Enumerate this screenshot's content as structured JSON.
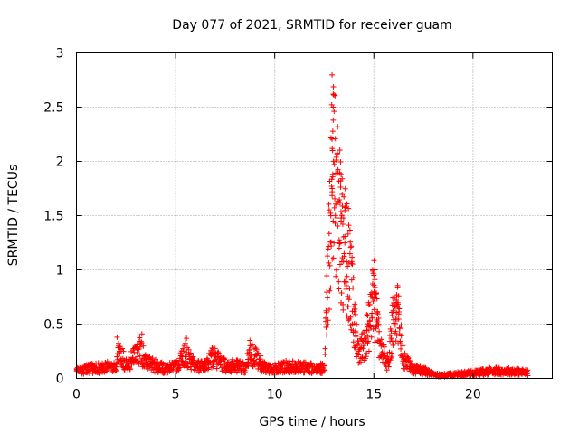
{
  "chart_data": {
    "type": "scatter",
    "title": "Day 077 of 2021, SRMTID for receiver guam",
    "xlabel": "GPS time / hours",
    "ylabel": "SRMTID / TECUs",
    "xlim": [
      0,
      24
    ],
    "ylim": [
      0,
      3
    ],
    "xticks": [
      0,
      5,
      10,
      15,
      20
    ],
    "xtick_labels": [
      "0",
      "5",
      "10",
      "15",
      "20"
    ],
    "yticks": [
      0,
      0.5,
      1,
      1.5,
      2,
      2.5,
      3
    ],
    "ytick_labels": [
      "0",
      "0.5",
      "1",
      "1.5",
      "2",
      "2.5",
      "3"
    ],
    "grid": true,
    "marker": "plus",
    "color": "#ff0000",
    "series": [
      {
        "name": "SRMTID",
        "envelope": {
          "x": [
            0,
            0.5,
            1.0,
            1.5,
            2.0,
            2.1,
            2.5,
            3.0,
            3.2,
            3.5,
            4.0,
            4.5,
            5.0,
            5.5,
            6.0,
            6.5,
            6.9,
            7.5,
            8.0,
            8.5,
            8.8,
            9.5,
            10.0,
            10.5,
            11.0,
            11.5,
            12.0,
            12.5,
            12.9,
            13.4,
            13.8,
            14.2,
            14.6,
            15.0,
            15.3,
            15.7,
            16.0,
            16.2,
            16.5,
            17.0,
            17.5,
            18.0,
            18.5,
            19.0,
            19.5,
            20.0,
            20.5,
            21.0,
            21.5,
            22.0,
            22.5,
            22.8
          ],
          "y": [
            0.09,
            0.12,
            0.13,
            0.14,
            0.15,
            0.36,
            0.18,
            0.3,
            0.38,
            0.2,
            0.16,
            0.12,
            0.15,
            0.3,
            0.16,
            0.15,
            0.28,
            0.16,
            0.16,
            0.14,
            0.32,
            0.14,
            0.12,
            0.15,
            0.15,
            0.14,
            0.13,
            0.13,
            2.6,
            1.85,
            1.3,
            0.3,
            0.5,
            1.0,
            0.4,
            0.2,
            0.75,
            0.78,
            0.25,
            0.12,
            0.1,
            0.05,
            0.04,
            0.05,
            0.06,
            0.07,
            0.08,
            0.1,
            0.09,
            0.09,
            0.08,
            0.07
          ]
        },
        "peaks": [
          {
            "x": 12.95,
            "y": 2.62
          },
          {
            "x": 12.95,
            "y": 2.5
          },
          {
            "x": 12.95,
            "y": 2.38
          },
          {
            "x": 12.9,
            "y": 2.12
          },
          {
            "x": 12.92,
            "y": 2.1
          },
          {
            "x": 12.9,
            "y": 1.75
          },
          {
            "x": 12.9,
            "y": 1.72
          },
          {
            "x": 12.95,
            "y": 1.45
          },
          {
            "x": 13.05,
            "y": 1.43
          },
          {
            "x": 13.35,
            "y": 1.88
          },
          {
            "x": 13.4,
            "y": 1.84
          },
          {
            "x": 13.3,
            "y": 1.62
          },
          {
            "x": 13.35,
            "y": 1.45
          },
          {
            "x": 13.3,
            "y": 1.25
          },
          {
            "x": 13.25,
            "y": 1.2
          },
          {
            "x": 13.7,
            "y": 1.33
          },
          {
            "x": 12.85,
            "y": 1.22
          },
          {
            "x": 12.9,
            "y": 1.1
          },
          {
            "x": 13.5,
            "y": 1.15
          },
          {
            "x": 15.05,
            "y": 1.0
          },
          {
            "x": 15.0,
            "y": 0.95
          },
          {
            "x": 16.15,
            "y": 0.77
          },
          {
            "x": 16.25,
            "y": 0.76
          },
          {
            "x": 3.1,
            "y": 0.4
          },
          {
            "x": 3.3,
            "y": 0.41
          },
          {
            "x": 2.05,
            "y": 0.38
          },
          {
            "x": 5.55,
            "y": 0.37
          },
          {
            "x": 8.75,
            "y": 0.35
          }
        ]
      }
    ]
  }
}
